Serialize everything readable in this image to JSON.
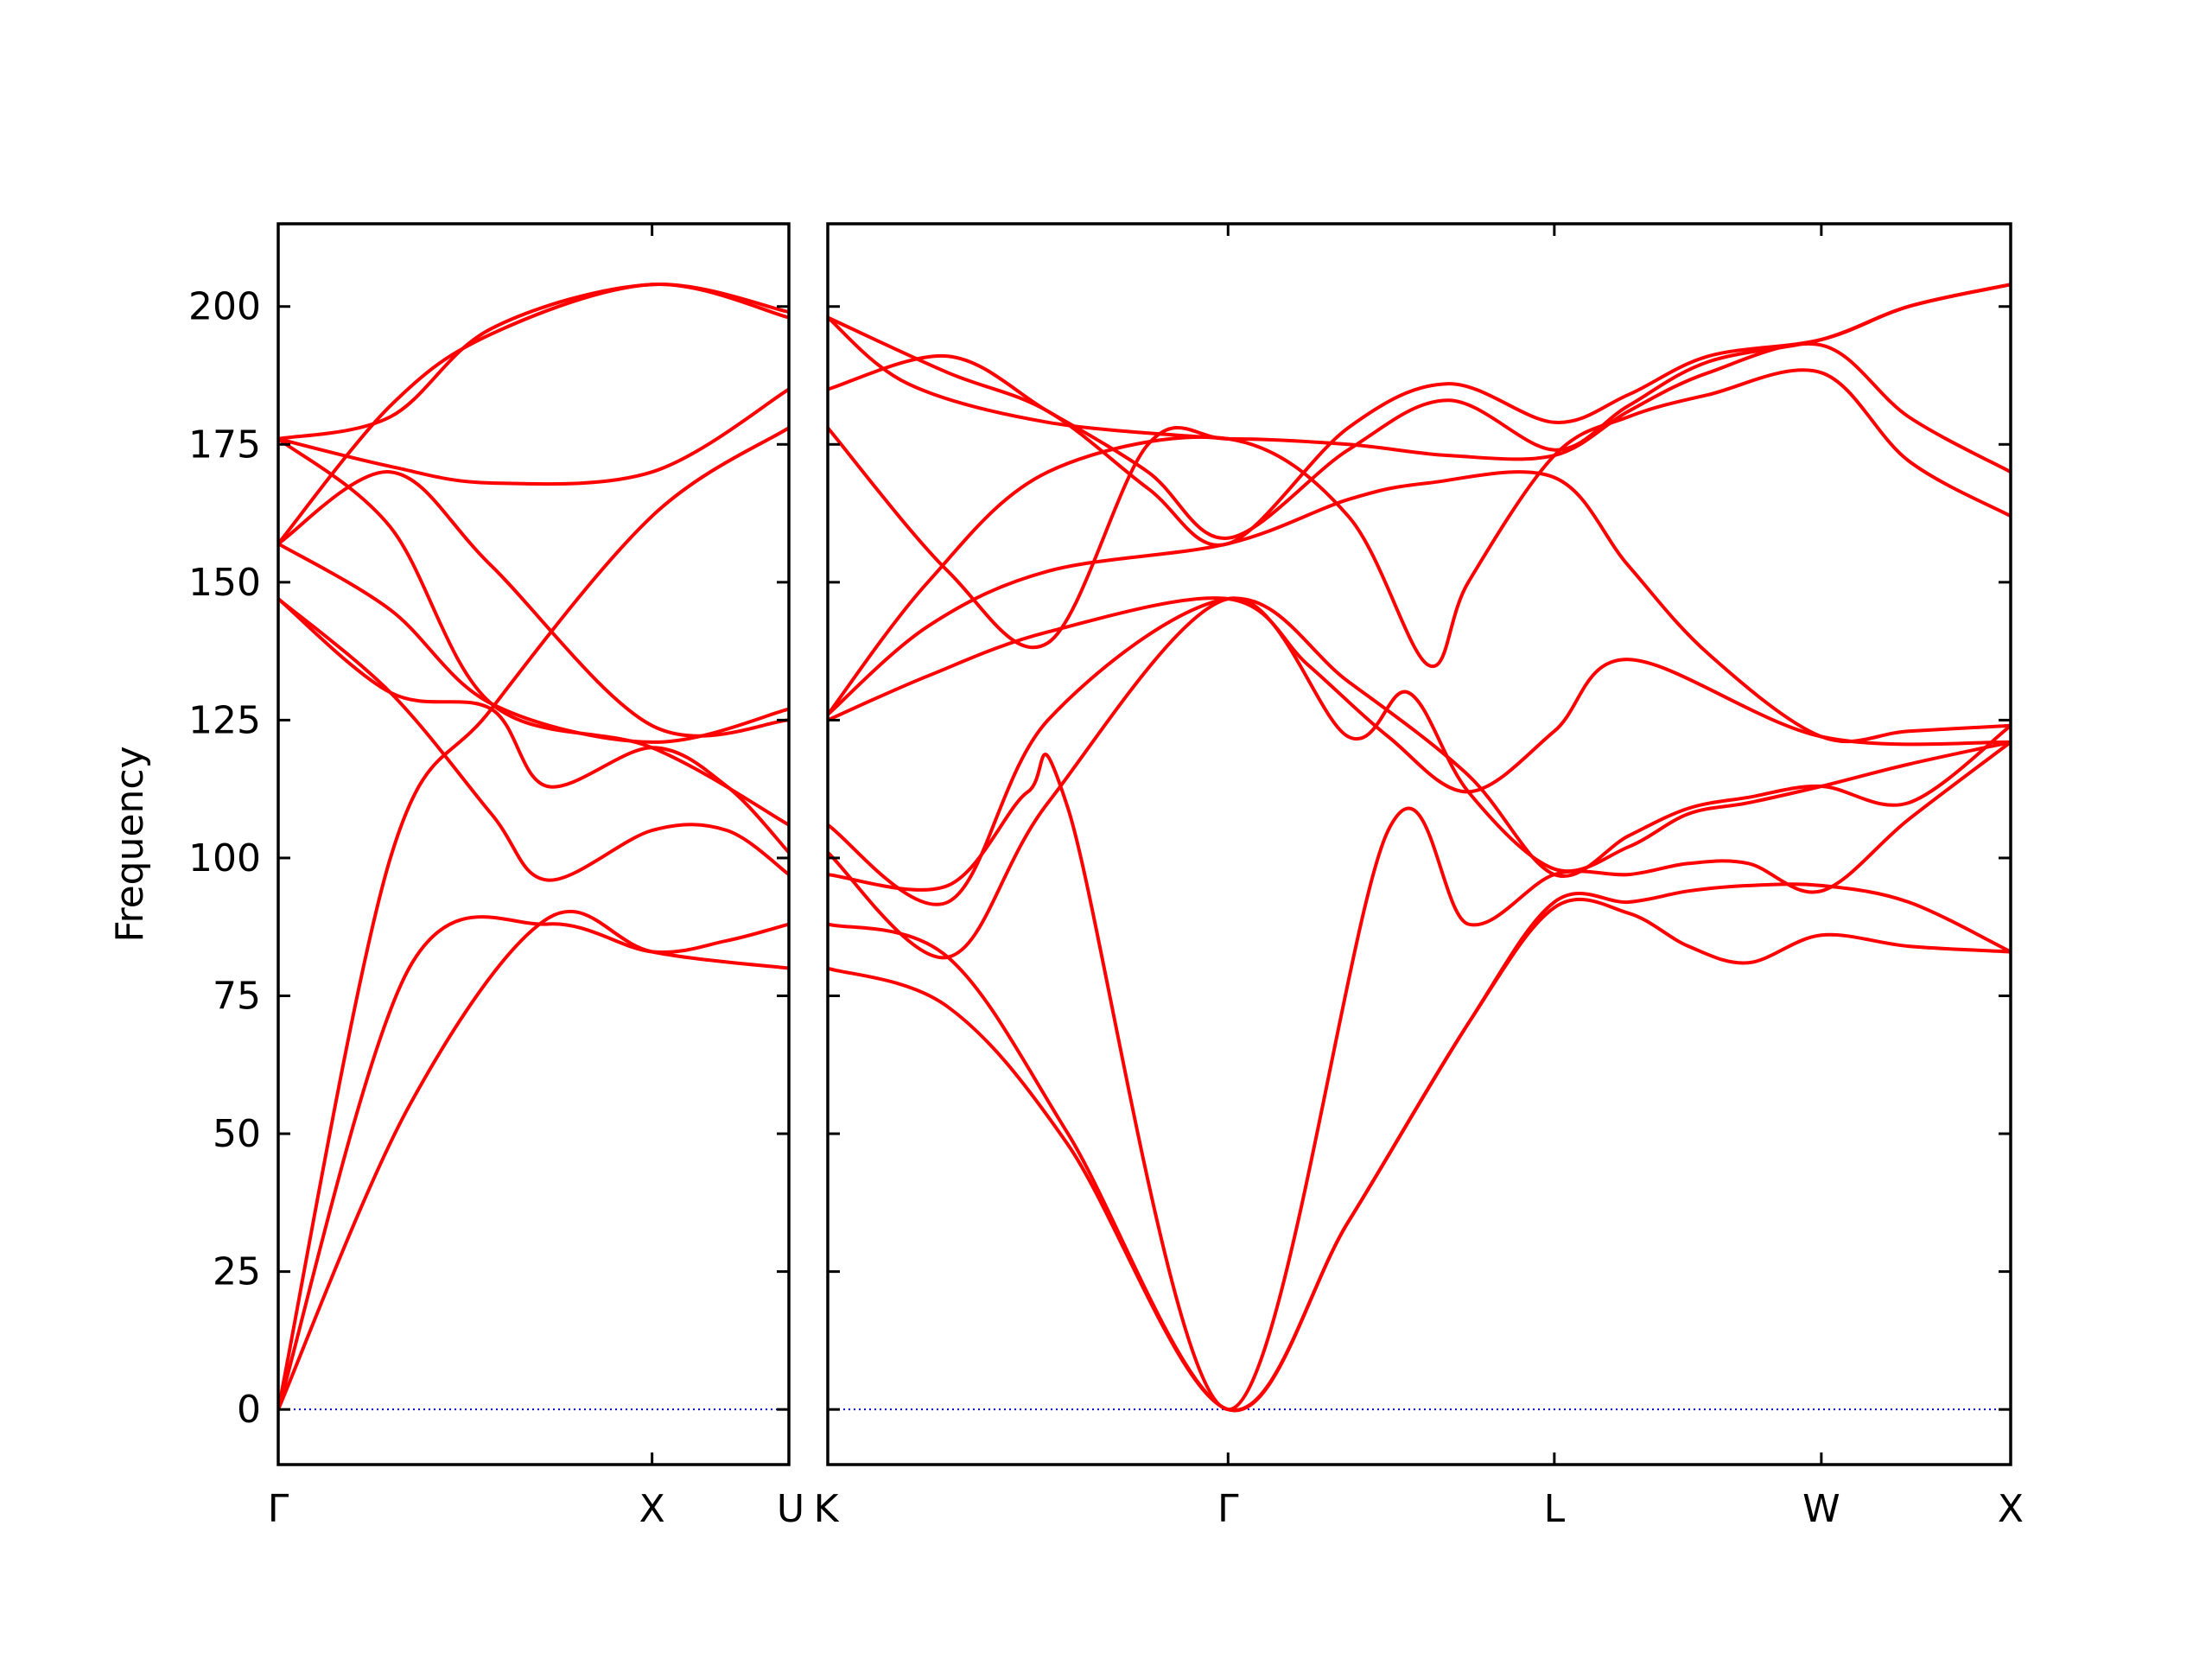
{
  "chart_data": {
    "type": "line",
    "ylabel": "Frequency",
    "ylim": [
      -10,
      215
    ],
    "yticks": [
      0,
      25,
      50,
      75,
      100,
      125,
      150,
      175,
      200
    ],
    "colors": {
      "bands": "#ff0000",
      "zero_line": "#0000cc",
      "frame": "#000000"
    },
    "grid": false,
    "zero_line": {
      "y": 0,
      "style": "dotted"
    },
    "panels": [
      {
        "x_range": [
          0,
          1.366
        ],
        "xticks": [
          {
            "x": 0,
            "label": "Γ"
          },
          {
            "x": 1.0,
            "label": "X"
          },
          {
            "x": 1.366,
            "label": "U"
          }
        ],
        "series": [
          {
            "x": [
              0,
              0.35,
              0.72,
              1.0,
              1.366
            ],
            "y": [
              0,
              55,
              89,
              83,
              80
            ]
          },
          {
            "x": [
              0,
              0.35,
              0.72,
              1.0,
              1.2,
              1.366
            ],
            "y": [
              0,
              80,
              88,
              83,
              85,
              88
            ]
          },
          {
            "x": [
              0,
              0.3,
              0.57,
              1.0,
              1.366
            ],
            "y": [
              0,
              100,
              127,
              162,
              178
            ]
          },
          {
            "x": [
              0,
              0.3,
              0.57,
              0.72,
              1.0,
              1.2,
              1.366
            ],
            "y": [
              147,
              130,
              108,
              96,
              105,
              105,
              97
            ]
          },
          {
            "x": [
              0,
              0.3,
              0.57,
              0.72,
              1.0,
              1.2,
              1.366
            ],
            "y": [
              147,
              130,
              127,
              113,
              120,
              113,
              101
            ]
          },
          {
            "x": [
              0,
              0.3,
              0.57,
              1.0,
              1.366
            ],
            "y": [
              157,
              145,
              128,
              121,
              127
            ]
          },
          {
            "x": [
              0,
              0.3,
              0.57,
              1.0,
              1.366
            ],
            "y": [
              157,
              170,
              153,
              124,
              125
            ]
          },
          {
            "x": [
              0,
              0.3,
              0.57,
              1.0,
              1.366
            ],
            "y": [
              176,
              171,
              168,
              170,
              185
            ]
          },
          {
            "x": [
              0,
              0.3,
              0.57,
              1.0,
              1.366
            ],
            "y": [
              176,
              160,
              128,
              120,
              106
            ]
          },
          {
            "x": [
              0,
              0.3,
              0.57,
              1.0,
              1.366
            ],
            "y": [
              157,
              182,
              195,
              204,
              198
            ]
          },
          {
            "x": [
              0,
              0.3,
              0.57,
              1.0,
              1.366
            ],
            "y": [
              176,
              180,
              196,
              204,
              199
            ]
          }
        ]
      },
      {
        "x_range": [
          0,
          2.955
        ],
        "xticks": [
          {
            "x": 0,
            "label": "K"
          },
          {
            "x": 1.0,
            "label": "Γ"
          },
          {
            "x": 1.815,
            "label": "L"
          },
          {
            "x": 2.482,
            "label": "W"
          },
          {
            "x": 2.955,
            "label": "X"
          }
        ],
        "series": [
          {
            "x": [
              0,
              0.3,
              0.6,
              1.0,
              1.3,
              1.6,
              1.815,
              2.0,
              2.15,
              2.3,
              2.482,
              2.7,
              2.955
            ],
            "y": [
              80,
              73,
              48,
              0,
              34,
              70,
              91,
              90,
              84,
              81,
              86,
              84,
              83
            ]
          },
          {
            "x": [
              0,
              0.3,
              0.6,
              1.0,
              1.3,
              1.6,
              1.815,
              2.0,
              2.15,
              2.3,
              2.482,
              2.7,
              2.955
            ],
            "y": [
              88,
              82,
              50,
              0,
              34,
              70,
              92,
              92,
              94,
              95,
              95,
              92,
              83
            ]
          },
          {
            "x": [
              0,
              0.3,
              0.5,
              0.6,
              1.0,
              1.4,
              1.6,
              1.815,
              2.0,
              2.15,
              2.3,
              2.482,
              2.7,
              2.955
            ],
            "y": [
              97,
              95,
              112,
              109,
              0,
              105,
              88,
              97,
              97,
              99,
              99,
              94,
              107,
              121
            ]
          },
          {
            "x": [
              0,
              0.3,
              0.55,
              1.0,
              1.3,
              1.45,
              1.6,
              1.815,
              2.0,
              2.15,
              2.3,
              2.482,
              2.7,
              2.955
            ],
            "y": [
              101,
              82,
              110,
              147,
              122,
              130,
              112,
              98,
              102,
              108,
              110,
              113,
              117,
              121
            ]
          },
          {
            "x": [
              0,
              0.3,
              0.55,
              1.0,
              1.3,
              1.6,
              1.815,
              2.0,
              2.15,
              2.3,
              2.482,
              2.7,
              2.955
            ],
            "y": [
              106,
              92,
              125,
              147,
              132,
              115,
              97,
              104,
              109,
              111,
              113,
              110,
              124
            ]
          },
          {
            "x": [
              0,
              0.25,
              0.55,
              1.0,
              1.2,
              1.4,
              1.6,
              1.815,
              2.0,
              2.482,
              2.955
            ],
            "y": [
              125,
              133,
              141,
              147,
              135,
              122,
              112,
              123,
              136,
              122,
              121
            ]
          },
          {
            "x": [
              0,
              0.25,
              0.55,
              1.0,
              1.3,
              1.5,
              1.815,
              2.0,
              2.2,
              2.482,
              2.7,
              2.955
            ],
            "y": [
              126,
              142,
              152,
              157,
              165,
              168,
              169,
              153,
              137,
              122,
              123,
              124
            ]
          },
          {
            "x": [
              0,
              0.25,
              0.55,
              1.0,
              1.3,
              1.5,
              1.6,
              1.815,
              2.0,
              2.2,
              2.482,
              2.7,
              2.955
            ],
            "y": [
              126,
              150,
              170,
              176,
              162,
              135,
              150,
              173,
              180,
              184,
              188,
              172,
              162
            ]
          },
          {
            "x": [
              0,
              0.3,
              0.55,
              0.8,
              1.0,
              1.3,
              1.55,
              1.815,
              2.0,
              2.2,
              2.482,
              2.7,
              2.955
            ],
            "y": [
              178,
              152,
              139,
              175,
              176,
              175,
              173,
              173,
              181,
              188,
              193,
              180,
              170
            ]
          },
          {
            "x": [
              0,
              0.3,
              0.55,
              0.8,
              1.0,
              1.3,
              1.55,
              1.815,
              2.0,
              2.2,
              2.482,
              2.7,
              2.955
            ],
            "y": [
              185,
              191,
              181,
              170,
              158,
              174,
              183,
              174,
              182,
              190,
              194,
              200,
              204
            ]
          },
          {
            "x": [
              0,
              0.3,
              0.55,
              0.8,
              1.0,
              1.3,
              1.55,
              1.815,
              2.0,
              2.2,
              2.482,
              2.7,
              2.955
            ],
            "y": [
              198,
              188,
              181,
              167,
              157,
              178,
              186,
              179,
              184,
              191,
              194,
              200,
              204
            ]
          },
          {
            "x": [
              0,
              0.2,
              0.55,
              1.0
            ],
            "y": [
              198,
              186,
              179,
              176
            ]
          }
        ]
      }
    ]
  }
}
